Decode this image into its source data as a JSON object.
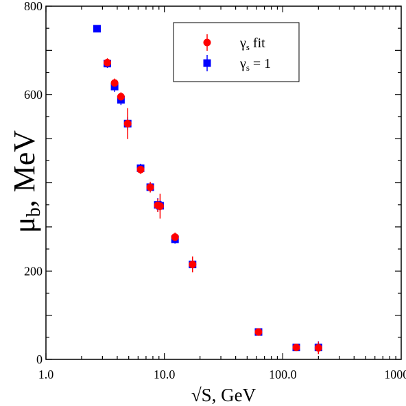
{
  "chart_data": {
    "type": "scatter",
    "xlabel": "√S, GeV",
    "ylabel_main": "μ",
    "ylabel_sub": "b",
    "ylabel_rest": ", MeV",
    "x_scale": "log",
    "xlim": [
      1.0,
      1000.0
    ],
    "ylim": [
      0,
      800
    ],
    "x_ticks": [
      1.0,
      10.0,
      100.0,
      1000.0
    ],
    "x_tick_labels": [
      "1.0",
      "10.0",
      "100.0",
      "1000.0"
    ],
    "y_ticks": [
      0,
      200,
      600,
      800
    ],
    "y_tick_labels": [
      "0",
      "200",
      "600",
      "800"
    ],
    "y_minor_step": 50,
    "grid": false,
    "legend_placement": "top-center",
    "series": [
      {
        "name_main": "γ",
        "name_sub": "s",
        "name_rest": " fit",
        "marker": "circle",
        "color": "#ff0000",
        "error_color": "#ff0000",
        "points": [
          {
            "x": 3.3,
            "y": 672,
            "err": 10
          },
          {
            "x": 3.8,
            "y": 626,
            "err": 10
          },
          {
            "x": 4.3,
            "y": 595,
            "err": 10
          },
          {
            "x": 4.9,
            "y": 534,
            "err": 35
          },
          {
            "x": 6.3,
            "y": 430,
            "err": 10
          },
          {
            "x": 7.6,
            "y": 390,
            "err": 12
          },
          {
            "x": 8.8,
            "y": 349,
            "err": 15
          },
          {
            "x": 9.2,
            "y": 347,
            "err": 28
          },
          {
            "x": 12.3,
            "y": 277,
            "err": 10
          },
          {
            "x": 17.3,
            "y": 215,
            "err": 18
          },
          {
            "x": 62.4,
            "y": 62,
            "err": 5
          },
          {
            "x": 130,
            "y": 27,
            "err": 5
          },
          {
            "x": 200,
            "y": 26,
            "err": 14
          }
        ]
      },
      {
        "name_main": "γ",
        "name_sub": "s",
        "name_rest": " = 1",
        "marker": "square",
        "color": "#0000ff",
        "error_color": "#0000ff",
        "points": [
          {
            "x": 2.7,
            "y": 749,
            "err": 3
          },
          {
            "x": 3.3,
            "y": 670,
            "err": 10
          },
          {
            "x": 3.8,
            "y": 618,
            "err": 12
          },
          {
            "x": 4.3,
            "y": 588,
            "err": 12
          },
          {
            "x": 4.9,
            "y": 534,
            "err": 15
          },
          {
            "x": 6.3,
            "y": 433,
            "err": 10
          },
          {
            "x": 7.6,
            "y": 390,
            "err": 10
          },
          {
            "x": 8.8,
            "y": 350,
            "err": 15
          },
          {
            "x": 9.2,
            "y": 348,
            "err": 12
          },
          {
            "x": 12.3,
            "y": 272,
            "err": 10
          },
          {
            "x": 17.3,
            "y": 215,
            "err": 10
          },
          {
            "x": 62.4,
            "y": 62,
            "err": 5
          },
          {
            "x": 130,
            "y": 27,
            "err": 5
          },
          {
            "x": 200,
            "y": 27,
            "err": 14
          }
        ]
      }
    ]
  }
}
